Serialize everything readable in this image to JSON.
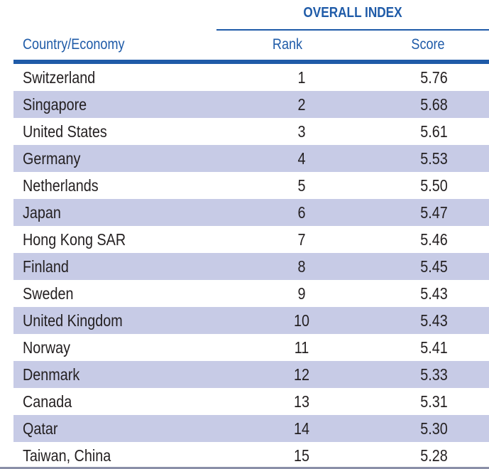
{
  "table": {
    "group_title": "OVERALL INDEX",
    "headers": {
      "country": "Country/Economy",
      "rank": "Rank",
      "score": "Score"
    },
    "rows": [
      {
        "country": "Switzerland",
        "rank": "1",
        "score": "5.76"
      },
      {
        "country": "Singapore",
        "rank": "2",
        "score": "5.68"
      },
      {
        "country": "United States",
        "rank": "3",
        "score": "5.61"
      },
      {
        "country": "Germany",
        "rank": "4",
        "score": "5.53"
      },
      {
        "country": "Netherlands",
        "rank": "5",
        "score": "5.50"
      },
      {
        "country": "Japan",
        "rank": "6",
        "score": "5.47"
      },
      {
        "country": "Hong Kong SAR",
        "rank": "7",
        "score": "5.46"
      },
      {
        "country": "Finland",
        "rank": "8",
        "score": "5.45"
      },
      {
        "country": "Sweden",
        "rank": "9",
        "score": "5.43"
      },
      {
        "country": "United Kingdom",
        "rank": "10",
        "score": "5.43"
      },
      {
        "country": "Norway",
        "rank": "11",
        "score": "5.41"
      },
      {
        "country": "Denmark",
        "rank": "12",
        "score": "5.33"
      },
      {
        "country": "Canada",
        "rank": "13",
        "score": "5.31"
      },
      {
        "country": "Qatar",
        "rank": "14",
        "score": "5.30"
      },
      {
        "country": "Taiwan, China",
        "rank": "15",
        "score": "5.28"
      }
    ]
  },
  "colors": {
    "accent": "#1f5ba8",
    "stripe": "#c7cbe6",
    "text": "#231f20"
  }
}
